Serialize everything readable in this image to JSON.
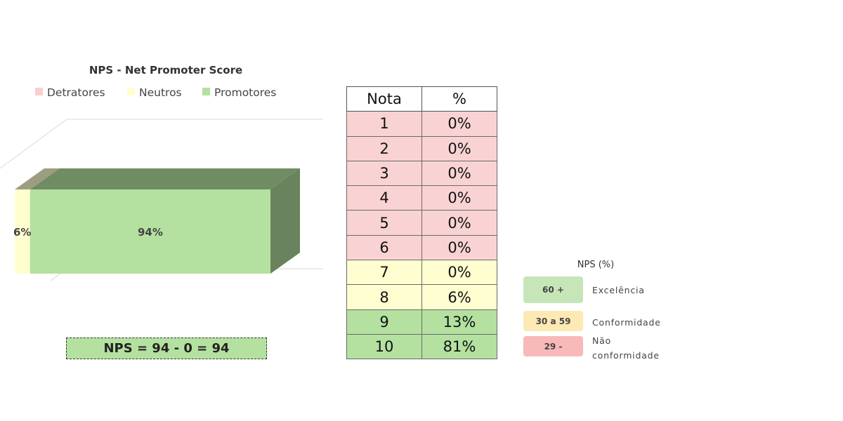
{
  "chart_data": {
    "type": "bar",
    "title": "NPS - Net Promoter Score",
    "categories": [
      ""
    ],
    "series": [
      {
        "name": "Detratores",
        "values": [
          0
        ],
        "color": "#f9cfcf"
      },
      {
        "name": "Neutros",
        "values": [
          6
        ],
        "color": "#fefed0"
      },
      {
        "name": "Promotores",
        "values": [
          94
        ],
        "color": "#b4e1a0"
      }
    ],
    "data_labels": [
      "",
      "6%",
      "94%"
    ],
    "stacked": true,
    "orientation": "horizontal",
    "three_d": true,
    "legend_position": "top",
    "xlim": [
      0,
      100
    ]
  },
  "nps_formula": "NPS = 94 - 0 = 94",
  "score_table": {
    "headers": [
      "Nota",
      "%"
    ],
    "rows": [
      {
        "nota": "1",
        "pct": "0%",
        "color": "#f9d3d3"
      },
      {
        "nota": "2",
        "pct": "0%",
        "color": "#f9d3d3"
      },
      {
        "nota": "3",
        "pct": "0%",
        "color": "#f9d3d3"
      },
      {
        "nota": "4",
        "pct": "0%",
        "color": "#f9d3d3"
      },
      {
        "nota": "5",
        "pct": "0%",
        "color": "#f9d3d3"
      },
      {
        "nota": "6",
        "pct": "0%",
        "color": "#f9d3d3"
      },
      {
        "nota": "7",
        "pct": "0%",
        "color": "#fefed0"
      },
      {
        "nota": "8",
        "pct": "6%",
        "color": "#fefed0"
      },
      {
        "nota": "9",
        "pct": "13%",
        "color": "#b4e1a0"
      },
      {
        "nota": "10",
        "pct": "81%",
        "color": "#b4e1a0"
      }
    ]
  },
  "nps_legend": {
    "title": "NPS (%)",
    "ranges": [
      {
        "range": "60 +",
        "label_lines": [
          "Excelência"
        ],
        "color": "#c6e6b8"
      },
      {
        "range": "30 a 59",
        "label_lines": [
          "Conformidade"
        ],
        "color": "#fde9b4"
      },
      {
        "range": "29 -",
        "label_lines": [
          "Não",
          "conformidade"
        ],
        "color": "#f9b9b9"
      }
    ]
  }
}
